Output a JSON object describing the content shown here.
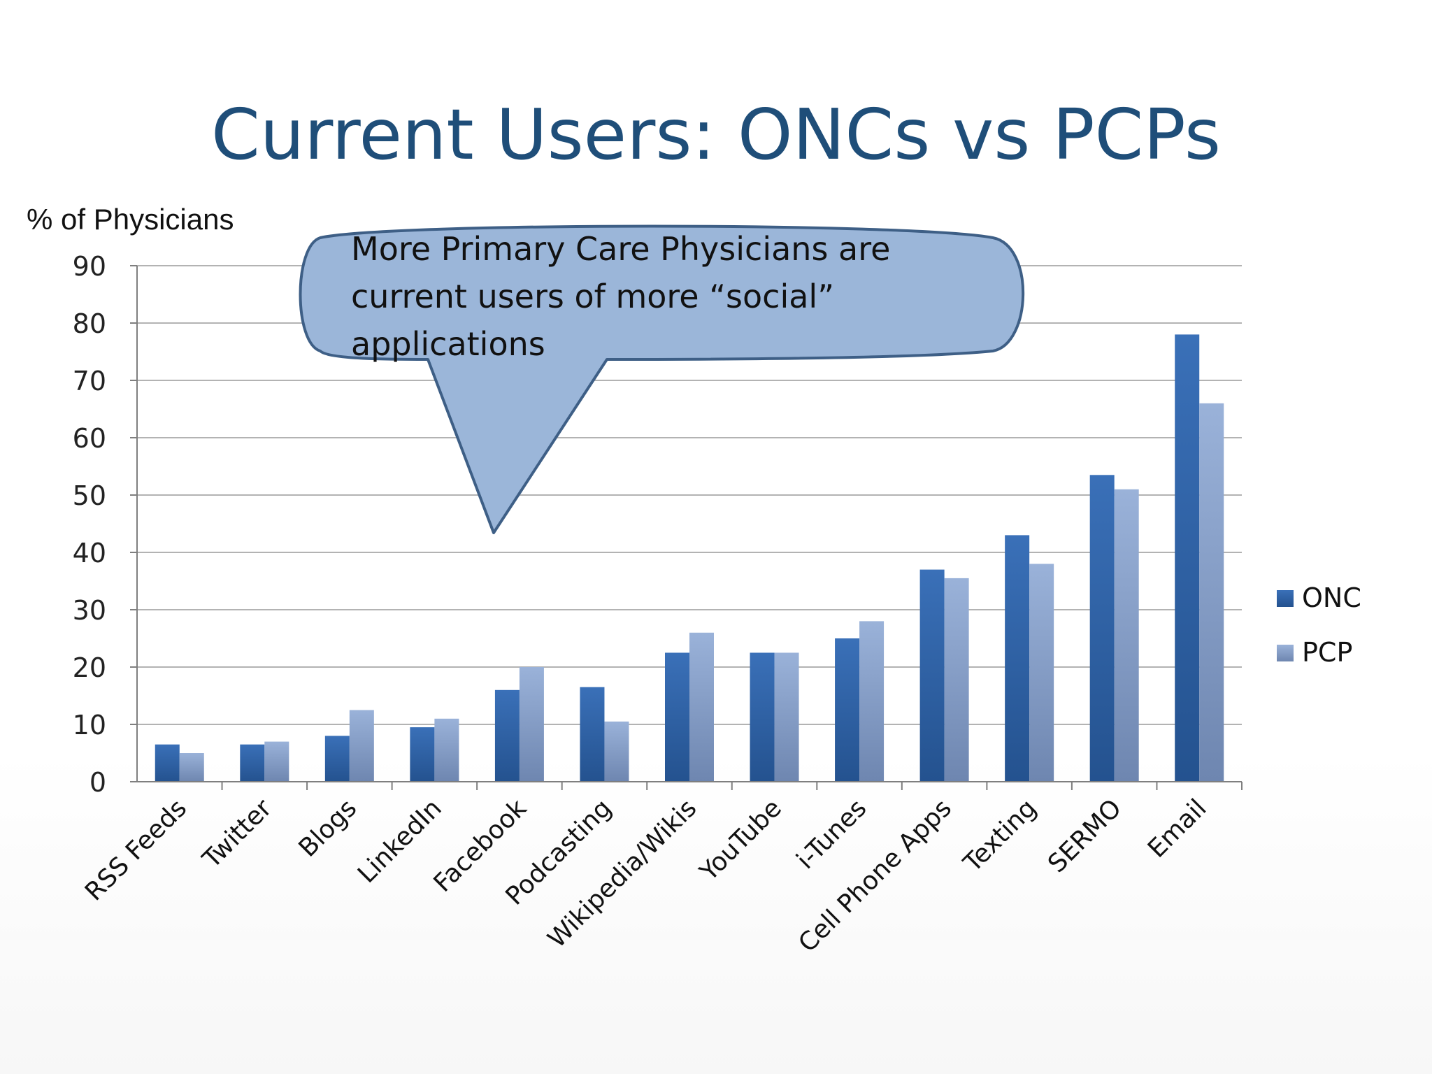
{
  "slide_title": "Current Users: ONCs vs PCPs",
  "callout": {
    "text": "More Primary Care Physicians are current users of more “social” applications"
  },
  "colors": {
    "title": "#1f4e79",
    "onc_light": "#3a70b8",
    "onc_dark": "#24528f",
    "pcp_light": "#9ab2d9",
    "pcp_dark": "#6e86b0",
    "callout_fill": "#9bb6d9",
    "callout_stroke": "#3e5f86",
    "grid": "#b3b3b3",
    "axis": "#7f7f7f"
  },
  "chart_data": {
    "type": "bar",
    "title": "",
    "xlabel": "",
    "ylabel": "% of Physicians",
    "ylim": [
      0,
      90
    ],
    "yticks": [
      0,
      10,
      20,
      30,
      40,
      50,
      60,
      70,
      80,
      90
    ],
    "grid": true,
    "legend_position": "right",
    "categories": [
      "RSS Feeds",
      "Twitter",
      "Blogs",
      "LinkedIn",
      "Facebook",
      "Podcasting",
      "Wikipedia/Wikis",
      "YouTube",
      "i-Tunes",
      "Cell Phone Apps",
      "Texting",
      "SERMO",
      "Email"
    ],
    "series": [
      {
        "name": "ONC",
        "values": [
          6.5,
          6.5,
          8,
          9.5,
          16,
          16.5,
          22.5,
          22.5,
          25,
          37,
          43,
          53.5,
          78
        ]
      },
      {
        "name": "PCP",
        "values": [
          5,
          7,
          12.5,
          11,
          20,
          10.5,
          26,
          22.5,
          28,
          35.5,
          38,
          51,
          66
        ]
      }
    ]
  }
}
